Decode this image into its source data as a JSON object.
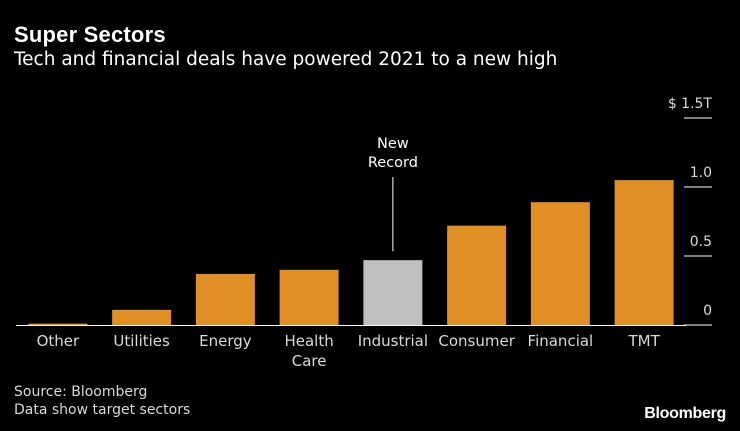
{
  "colors": {
    "background": "#000000",
    "bar": "#e08e26",
    "highlight_bar": "#c0c0c0",
    "text": "#d9d9d9"
  },
  "chart_data": {
    "type": "bar",
    "title": "Super Sectors",
    "subtitle": "Tech and financial deals have powered 2021 to a new high",
    "categories": [
      [
        "Other"
      ],
      [
        "Utilities"
      ],
      [
        "Energy"
      ],
      [
        "Health",
        "Care"
      ],
      [
        "Industrial"
      ],
      [
        "Consumer"
      ],
      [
        "Financial"
      ],
      [
        "TMT"
      ]
    ],
    "values": [
      0.01,
      0.11,
      0.37,
      0.4,
      0.47,
      0.72,
      0.89,
      1.05
    ],
    "highlight_index": 4,
    "ylim": [
      0,
      1.5
    ],
    "y_ticks": [
      {
        "value": 0,
        "label": "0"
      },
      {
        "value": 0.5,
        "label": "0.5"
      },
      {
        "value": 1.0,
        "label": "1.0"
      },
      {
        "value": 1.5,
        "label": "$ 1.5T"
      }
    ],
    "annotation": {
      "lines": [
        "New",
        "Record"
      ],
      "target_index": 4
    },
    "xlabel": "",
    "ylabel": ""
  },
  "footer": {
    "source": "Source: Bloomberg",
    "note": "Data show target sectors",
    "brand": "Bloomberg"
  }
}
